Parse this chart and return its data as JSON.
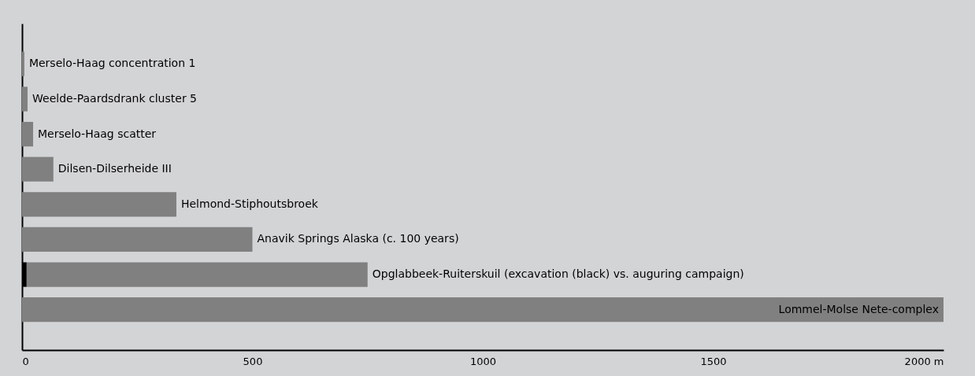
{
  "chart_data": {
    "type": "bar",
    "orientation": "horizontal",
    "stacked": true,
    "categories": [
      "Merselo-Haag concentration 1",
      "Weelde-Paardsdrank cluster 5",
      "Merselo-Haag scatter",
      "Dilsen-Dilserheide III",
      "Helmond-Stiphoutsbroek",
      "Anavik Springs Alaska (c. 100 years)",
      "Opglabbeek-Ruiterskuil (excavation (black) vs. auguring campaign)",
      "Lommel-Molse Nete-complex"
    ],
    "series": [
      {
        "color": "#000000",
        "values": [
          null,
          null,
          null,
          null,
          null,
          null,
          10,
          null
        ]
      },
      {
        "color": "#808080",
        "values": [
          5,
          12,
          24,
          68,
          335,
          500,
          740,
          2000
        ]
      }
    ],
    "xlim": [
      0,
      2000
    ],
    "xticks": [
      0,
      500,
      1000,
      1500,
      {
        "value": 2000,
        "label": "2000 m"
      }
    ],
    "grid": false,
    "legend": false
  }
}
